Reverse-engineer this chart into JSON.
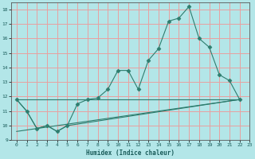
{
  "xlabel": "Humidex (Indice chaleur)",
  "background_color": "#b3e6e8",
  "grid_color": "#e8a0a0",
  "line_color": "#2e7d6e",
  "xlim": [
    -0.5,
    23
  ],
  "ylim": [
    9,
    18.5
  ],
  "xticks": [
    0,
    1,
    2,
    3,
    4,
    5,
    6,
    7,
    8,
    9,
    10,
    11,
    12,
    13,
    14,
    15,
    16,
    17,
    18,
    19,
    20,
    21,
    22,
    23
  ],
  "yticks": [
    9,
    10,
    11,
    12,
    13,
    14,
    15,
    16,
    17,
    18
  ],
  "series": [
    {
      "x": [
        0,
        1,
        2,
        3,
        4,
        5,
        6,
        7,
        8,
        9,
        10,
        11,
        12,
        13,
        14,
        15,
        16,
        17,
        18,
        19,
        20,
        21,
        22
      ],
      "y": [
        11.8,
        11.0,
        9.8,
        10.0,
        9.6,
        10.0,
        11.5,
        11.8,
        11.9,
        12.5,
        13.8,
        13.8,
        12.5,
        14.5,
        15.3,
        17.2,
        17.4,
        18.2,
        16.0,
        15.4,
        13.5,
        13.1,
        11.8
      ],
      "marker": "D",
      "markersize": 2.5
    },
    {
      "x": [
        0,
        1,
        2,
        3,
        4,
        5,
        22
      ],
      "y": [
        11.8,
        11.0,
        9.8,
        10.0,
        9.6,
        10.0,
        11.8
      ],
      "marker": null,
      "markersize": 0
    },
    {
      "x": [
        0,
        22
      ],
      "y": [
        11.8,
        11.8
      ],
      "marker": null,
      "markersize": 0
    },
    {
      "x": [
        0,
        22
      ],
      "y": [
        9.6,
        11.8
      ],
      "marker": null,
      "markersize": 0
    }
  ]
}
